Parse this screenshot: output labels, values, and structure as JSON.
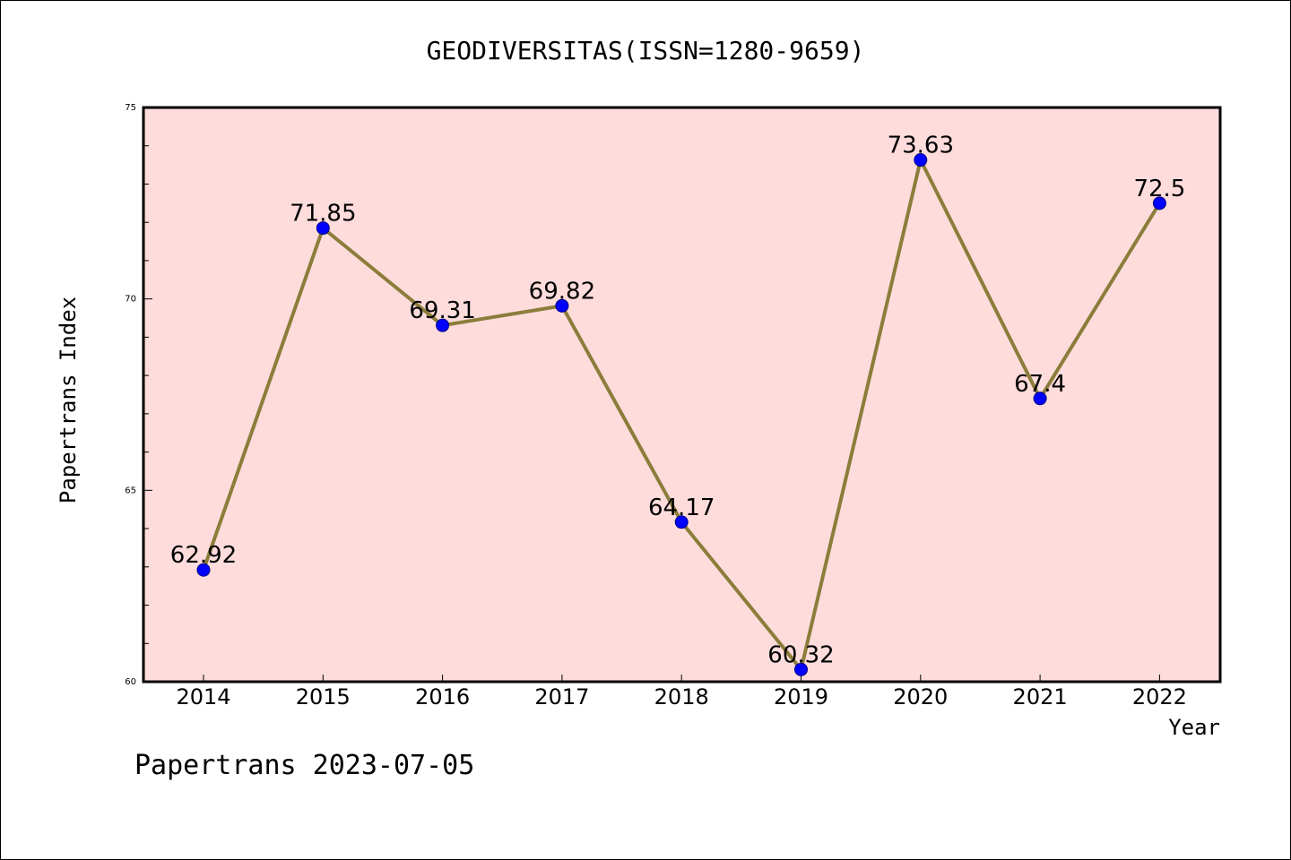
{
  "chart_data": {
    "type": "line",
    "title": "GEODIVERSITAS(ISSN=1280-9659)",
    "xlabel": "Year",
    "ylabel": "Papertrans Index",
    "categories": [
      "2014",
      "2015",
      "2016",
      "2017",
      "2018",
      "2019",
      "2020",
      "2021",
      "2022"
    ],
    "series": [
      {
        "values": [
          62.92,
          71.85,
          69.31,
          69.82,
          64.17,
          60.32,
          73.63,
          67.4,
          72.5
        ],
        "data_labels": [
          "62.92",
          "71.85",
          "69.31",
          "69.82",
          "64.17",
          "60.32",
          "73.63",
          "67.4",
          "72.5"
        ],
        "line_color": "#8b7d3a",
        "marker_color": "#0000ff"
      }
    ],
    "ylim": [
      60,
      75
    ],
    "yticks": [
      60,
      65,
      70,
      75
    ],
    "ytick_labels": [
      "60",
      "65",
      "70",
      "75"
    ],
    "minor_ytick_step": 1,
    "grid": false,
    "legend": "none",
    "plot_background": "#ffdcdc"
  },
  "footer": {
    "text": "Papertrans 2023-07-05"
  }
}
